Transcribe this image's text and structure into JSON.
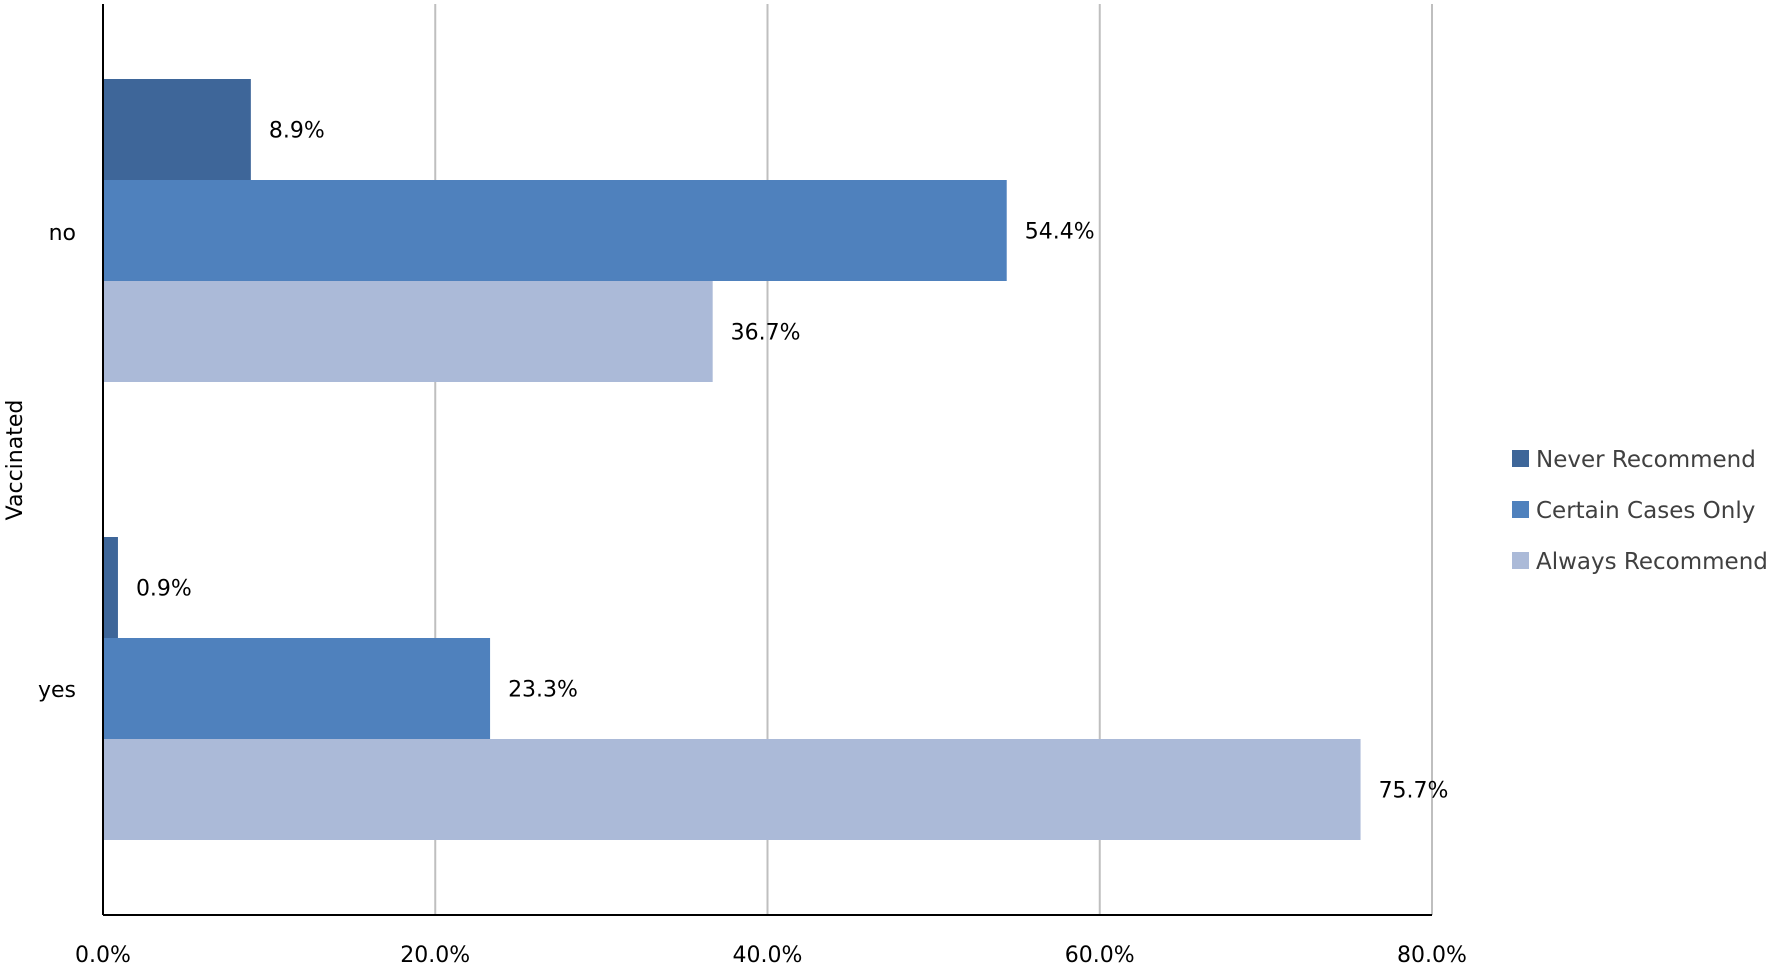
{
  "chart_data": {
    "type": "bar",
    "orientation": "horizontal",
    "title": "",
    "xlabel": "",
    "ylabel": "Vaccinated",
    "categories": [
      "no",
      "yes"
    ],
    "series": [
      {
        "name": "Never Recommend",
        "values": [
          8.9,
          0.9
        ],
        "labels": [
          "8.9%",
          "0.9%"
        ],
        "color": "#3e6699"
      },
      {
        "name": "Certain Cases Only",
        "values": [
          54.4,
          23.3
        ],
        "labels": [
          "54.4%",
          "23.3%"
        ],
        "color": "#4f81bd"
      },
      {
        "name": "Always Recommend",
        "values": [
          36.7,
          75.7
        ],
        "labels": [
          "36.7%",
          "75.7%"
        ],
        "color": "#abbad8"
      }
    ],
    "xlim": [
      0,
      80
    ],
    "xticks": [
      0,
      20,
      40,
      60,
      80
    ],
    "xtick_labels": [
      "0.0%",
      "20.0%",
      "40.0%",
      "60.0%",
      "80.0%"
    ],
    "grid": "vertical",
    "legend_position": "right"
  }
}
